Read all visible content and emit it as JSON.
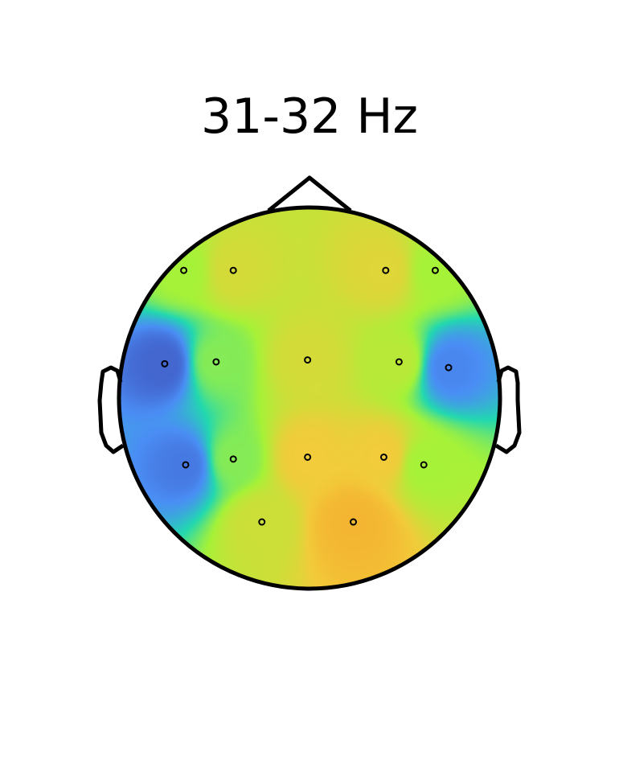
{
  "chart_data": {
    "type": "heatmap",
    "title": "31-32 Hz",
    "colormap": [
      "#3b3ea8",
      "#4a8ef5",
      "#22d8b0",
      "#a6f238",
      "#f2cc3a",
      "#f5a82c"
    ],
    "value_range": [
      0,
      1
    ],
    "sensors": [
      {
        "x": -0.66,
        "y": 0.67,
        "value": 0.6
      },
      {
        "x": -0.4,
        "y": 0.67,
        "value": 0.72
      },
      {
        "x": 0.4,
        "y": 0.67,
        "value": 0.75
      },
      {
        "x": 0.66,
        "y": 0.67,
        "value": 0.6
      },
      {
        "x": -0.76,
        "y": 0.18,
        "value": 0.1
      },
      {
        "x": -0.49,
        "y": 0.19,
        "value": 0.55
      },
      {
        "x": -0.01,
        "y": 0.2,
        "value": 0.72
      },
      {
        "x": 0.47,
        "y": 0.19,
        "value": 0.65
      },
      {
        "x": 0.73,
        "y": 0.16,
        "value": 0.18
      },
      {
        "x": -0.65,
        "y": -0.35,
        "value": 0.15
      },
      {
        "x": -0.4,
        "y": -0.32,
        "value": 0.55
      },
      {
        "x": -0.01,
        "y": -0.31,
        "value": 0.8
      },
      {
        "x": 0.39,
        "y": -0.31,
        "value": 0.8
      },
      {
        "x": 0.6,
        "y": -0.35,
        "value": 0.6
      },
      {
        "x": -0.25,
        "y": -0.65,
        "value": 0.7
      },
      {
        "x": 0.23,
        "y": -0.65,
        "value": 0.92
      }
    ]
  }
}
